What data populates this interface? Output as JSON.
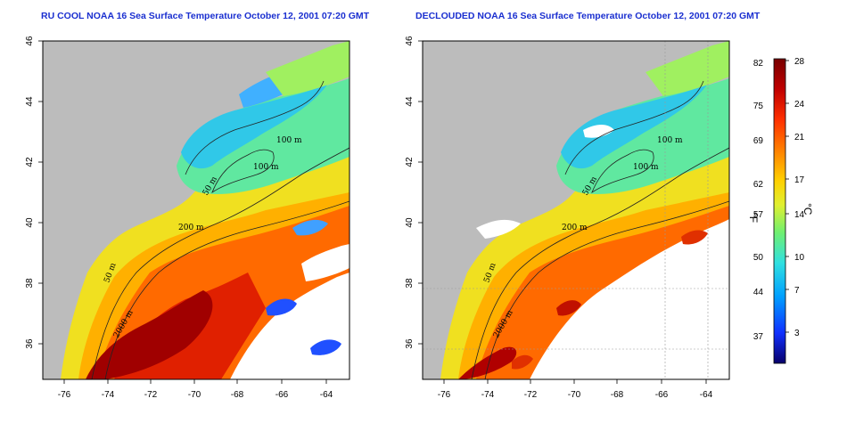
{
  "panels": [
    {
      "id": "left",
      "title": "RU COOL NOAA 16 Sea Surface Temperature October 12, 2001 07:20 GMT",
      "x_ticks": [
        "-76",
        "-74",
        "-72",
        "-70",
        "-68",
        "-66",
        "-64"
      ],
      "y_ticks": [
        "46",
        "44",
        "42",
        "40",
        "38",
        "36"
      ],
      "contour_labels": [
        "100 m",
        "100 m",
        "50 m",
        "200 m",
        "50 m",
        "2000 m"
      ]
    },
    {
      "id": "right",
      "title": "DECLOUDED NOAA 16 Sea Surface Temperature October 12, 2001 07:20 GMT",
      "x_ticks": [
        "-76",
        "-74",
        "-72",
        "-70",
        "-68",
        "-66",
        "-64"
      ],
      "y_ticks": [
        "46",
        "44",
        "42",
        "40",
        "38",
        "36"
      ],
      "contour_labels": [
        "100 m",
        "100 m",
        "50 m",
        "200 m",
        "50 m",
        "2000 m"
      ]
    }
  ],
  "colorbar": {
    "fahrenheit_label": "°F",
    "celsius_label": "°C",
    "fahrenheit_ticks": [
      "82",
      "75",
      "69",
      "62",
      "57",
      "50",
      "44",
      "37"
    ],
    "celsius_ticks": [
      "28",
      "24",
      "21",
      "17",
      "14",
      "10",
      "7",
      "3"
    ],
    "colors": [
      "#08006a",
      "#1030ff",
      "#00a0ff",
      "#30e0e0",
      "#70f070",
      "#e0f030",
      "#ffd000",
      "#ff8000",
      "#ff3000",
      "#c00000",
      "#780000"
    ]
  },
  "map_colors": {
    "land": "#bcbcbc",
    "cloud": "#ffffff"
  }
}
